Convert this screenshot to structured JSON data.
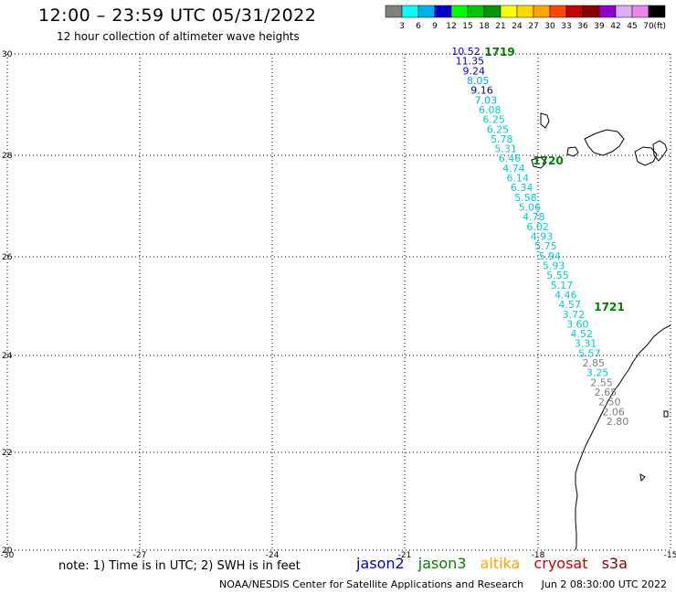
{
  "header": {
    "title": "12:00 – 23:59 UTC 05/31/2022",
    "subtitle": "12 hour collection of altimeter wave heights"
  },
  "scale": {
    "unit": "(ft)",
    "colors": [
      "#808080",
      "#00ffff",
      "#00b0f0",
      "#0000cd",
      "#00ff00",
      "#00c800",
      "#009600",
      "#ffff00",
      "#ffd700",
      "#ffa500",
      "#ff4500",
      "#c80000",
      "#8b0000",
      "#9400d3",
      "#d8b0f0",
      "#ee82ee",
      "#000000"
    ],
    "labels": [
      "3",
      "6",
      "9",
      "12",
      "15",
      "18",
      "21",
      "24",
      "27",
      "30",
      "33",
      "36",
      "39",
      "42",
      "45",
      "70"
    ]
  },
  "map": {
    "lat_labels": [
      "30",
      "28",
      "26",
      "24",
      "22",
      "20"
    ],
    "lon_labels": [
      "-30",
      "-27",
      "-24",
      "-21",
      "-18",
      "-15"
    ],
    "times": [
      {
        "label": "1719",
        "color": "#008000"
      },
      {
        "label": "1720",
        "color": "#008000"
      },
      {
        "label": "1721",
        "color": "#008000"
      }
    ],
    "points": [
      {
        "v": "10.52",
        "c": "#0000cd"
      },
      {
        "v": "11.35",
        "c": "#0000cd"
      },
      {
        "v": "9.24",
        "c": "#0000cd"
      },
      {
        "v": "8.05",
        "c": "#00b0f0"
      },
      {
        "v": "9.16",
        "c": "#0000cd"
      },
      {
        "v": "7.03",
        "c": "#00b0f0"
      },
      {
        "v": "6.08",
        "c": "#00ced1"
      },
      {
        "v": "6.25",
        "c": "#00ced1"
      },
      {
        "v": "6.25",
        "c": "#00ced1"
      },
      {
        "v": "5.78",
        "c": "#00ced1"
      },
      {
        "v": "5.31",
        "c": "#00ced1"
      },
      {
        "v": "6.46",
        "c": "#00ced1"
      },
      {
        "v": "4.74",
        "c": "#00ced1"
      },
      {
        "v": "6.14",
        "c": "#00ced1"
      },
      {
        "v": "6.34",
        "c": "#00ced1"
      },
      {
        "v": "5.58",
        "c": "#00ced1"
      },
      {
        "v": "5.06",
        "c": "#00ced1"
      },
      {
        "v": "4.78",
        "c": "#00ced1"
      },
      {
        "v": "6.02",
        "c": "#00ced1"
      },
      {
        "v": "4.93",
        "c": "#00ced1"
      },
      {
        "v": "5.75",
        "c": "#00ced1"
      },
      {
        "v": "5.94",
        "c": "#00ced1"
      },
      {
        "v": "5.93",
        "c": "#00ced1"
      },
      {
        "v": "5.55",
        "c": "#00ced1"
      },
      {
        "v": "5.17",
        "c": "#00ced1"
      },
      {
        "v": "4.46",
        "c": "#00ced1"
      },
      {
        "v": "4.57",
        "c": "#00ced1"
      },
      {
        "v": "3.72",
        "c": "#00ced1"
      },
      {
        "v": "3.60",
        "c": "#00ced1"
      },
      {
        "v": "4.52",
        "c": "#00ced1"
      },
      {
        "v": "3.31",
        "c": "#00ced1"
      },
      {
        "v": "5.57",
        "c": "#00ced1"
      },
      {
        "v": "2.85",
        "c": "#808080"
      },
      {
        "v": "3.25",
        "c": "#00ced1"
      },
      {
        "v": "2.55",
        "c": "#808080"
      },
      {
        "v": "2.65",
        "c": "#808080"
      },
      {
        "v": "2.50",
        "c": "#808080"
      },
      {
        "v": "2.06",
        "c": "#808080"
      },
      {
        "v": "2.80",
        "c": "#808080"
      }
    ]
  },
  "footer": {
    "note": "note:  1) Time is in UTC;  2) SWH is in feet",
    "satellites": [
      {
        "name": "jason2",
        "color": "#0000cd"
      },
      {
        "name": "jason3",
        "color": "#008000"
      },
      {
        "name": "altika",
        "color": "#ffa500"
      },
      {
        "name": "cryosat",
        "color": "#cc0000"
      },
      {
        "name": "s3a",
        "color": "#8b0000"
      }
    ],
    "credit": "NOAA/NESDIS Center for Satellite Applications and Research",
    "timestamp": "Jun  2 08:30:00 UTC 2022"
  }
}
